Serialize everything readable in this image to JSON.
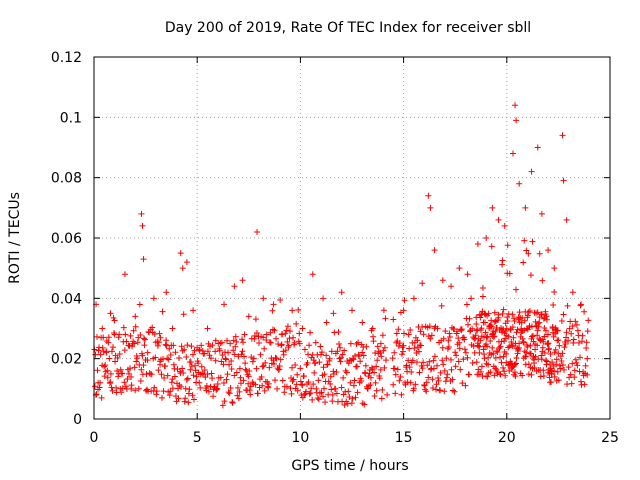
{
  "chart_data": {
    "type": "scatter",
    "title": "Day 200 of 2019, Rate Of TEC Index for receiver sbll",
    "xlabel": "GPS time / hours",
    "ylabel": "ROTI / TECUs",
    "xlim": [
      0,
      25
    ],
    "ylim": [
      0,
      0.12
    ],
    "xticks": [
      0,
      5,
      10,
      15,
      20,
      25
    ],
    "xtick_labels": [
      "0",
      "5",
      "10",
      "15",
      "20",
      "25"
    ],
    "yticks": [
      0,
      0.02,
      0.04,
      0.06,
      0.08,
      0.1,
      0.12
    ],
    "ytick_labels": [
      "0",
      "0.02",
      "0.04",
      "0.06",
      "0.08",
      "0.1",
      "0.12"
    ],
    "grid": true,
    "marker": "+",
    "color": "#ff0000",
    "series": [
      {
        "name": "ROTI",
        "points": [
          [
            0.1,
            0.038
          ],
          [
            0.2,
            0.012
          ],
          [
            0.4,
            0.03
          ],
          [
            0.6,
            0.022
          ],
          [
            0.8,
            0.035
          ],
          [
            1.0,
            0.028
          ],
          [
            1.2,
            0.015
          ],
          [
            1.5,
            0.048
          ],
          [
            1.8,
            0.01
          ],
          [
            2.0,
            0.034
          ],
          [
            2.3,
            0.068
          ],
          [
            2.35,
            0.064
          ],
          [
            2.4,
            0.053
          ],
          [
            2.6,
            0.022
          ],
          [
            2.9,
            0.04
          ],
          [
            3.2,
            0.018
          ],
          [
            3.5,
            0.042
          ],
          [
            3.8,
            0.03
          ],
          [
            4.2,
            0.055
          ],
          [
            4.3,
            0.05
          ],
          [
            4.5,
            0.052
          ],
          [
            4.8,
            0.036
          ],
          [
            5.1,
            0.012
          ],
          [
            5.5,
            0.03
          ],
          [
            5.9,
            0.026
          ],
          [
            6.3,
            0.038
          ],
          [
            6.8,
            0.044
          ],
          [
            7.2,
            0.046
          ],
          [
            7.5,
            0.034
          ],
          [
            7.9,
            0.062
          ],
          [
            8.2,
            0.04
          ],
          [
            8.7,
            0.038
          ],
          [
            9.1,
            0.028
          ],
          [
            9.6,
            0.036
          ],
          [
            10.1,
            0.03
          ],
          [
            10.6,
            0.048
          ],
          [
            11.1,
            0.04
          ],
          [
            11.6,
            0.035
          ],
          [
            12.0,
            0.042
          ],
          [
            12.5,
            0.036
          ],
          [
            13.0,
            0.032
          ],
          [
            13.5,
            0.03
          ],
          [
            13.9,
            0.025
          ],
          [
            14.2,
            0.008
          ],
          [
            14.5,
            0.033
          ],
          [
            15.0,
            0.036
          ],
          [
            15.5,
            0.04
          ],
          [
            15.9,
            0.045
          ],
          [
            16.2,
            0.074
          ],
          [
            16.3,
            0.07
          ],
          [
            16.5,
            0.056
          ],
          [
            16.9,
            0.046
          ],
          [
            17.3,
            0.044
          ],
          [
            17.7,
            0.05
          ],
          [
            18.1,
            0.048
          ],
          [
            18.6,
            0.058
          ],
          [
            19.0,
            0.06
          ],
          [
            19.3,
            0.07
          ],
          [
            19.6,
            0.066
          ],
          [
            19.9,
            0.064
          ],
          [
            20.3,
            0.088
          ],
          [
            20.4,
            0.104
          ],
          [
            20.45,
            0.099
          ],
          [
            20.6,
            0.078
          ],
          [
            20.9,
            0.07
          ],
          [
            21.2,
            0.082
          ],
          [
            21.5,
            0.09
          ],
          [
            21.7,
            0.068
          ],
          [
            22.0,
            0.056
          ],
          [
            22.3,
            0.05
          ],
          [
            22.7,
            0.094
          ],
          [
            22.75,
            0.079
          ],
          [
            22.9,
            0.066
          ],
          [
            23.2,
            0.042
          ],
          [
            23.6,
            0.038
          ],
          [
            23.9,
            0.02
          ]
        ]
      }
    ]
  }
}
